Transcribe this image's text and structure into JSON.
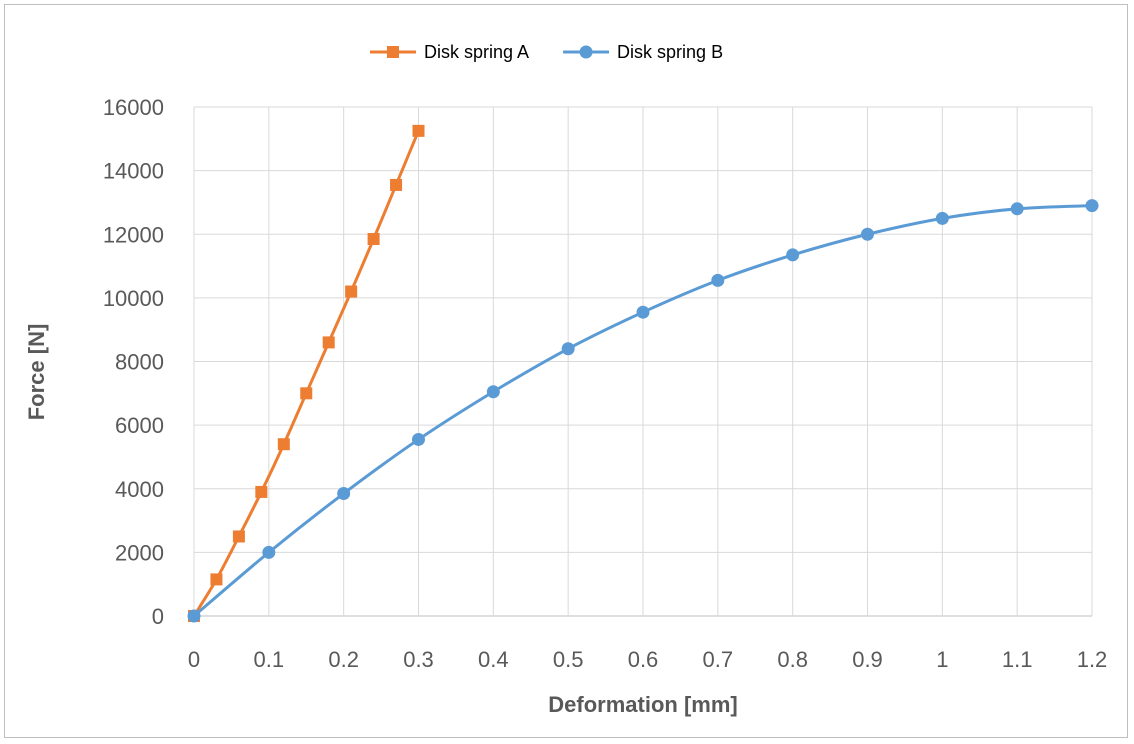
{
  "chart_data": {
    "type": "line",
    "title": "",
    "xlabel": "Deformation [mm]",
    "ylabel": "Force [N]",
    "xlim": [
      0,
      1.2
    ],
    "ylim": [
      0,
      16000
    ],
    "x_ticks": [
      "0",
      "0.1",
      "0.2",
      "0.3",
      "0.4",
      "0.5",
      "0.6",
      "0.7",
      "0.8",
      "0.9",
      "1",
      "1.1",
      "1.2"
    ],
    "y_ticks": [
      "0",
      "2000",
      "4000",
      "6000",
      "8000",
      "10000",
      "12000",
      "14000",
      "16000"
    ],
    "grid": true,
    "legend_position": "top",
    "series": [
      {
        "name": "Disk spring A",
        "color": "#ed7d31",
        "marker": "square",
        "x": [
          0,
          0.03,
          0.06,
          0.09,
          0.12,
          0.15,
          0.18,
          0.21,
          0.24,
          0.27,
          0.3
        ],
        "y": [
          0,
          1150,
          2500,
          3900,
          5400,
          7000,
          8600,
          10200,
          11850,
          13550,
          15250
        ]
      },
      {
        "name": "Disk spring B",
        "color": "#5b9bd5",
        "marker": "circle",
        "x": [
          0,
          0.1,
          0.2,
          0.3,
          0.4,
          0.5,
          0.6,
          0.7,
          0.8,
          0.9,
          1.0,
          1.1,
          1.2
        ],
        "y": [
          0,
          2000,
          3850,
          5550,
          7050,
          8400,
          9550,
          10550,
          11350,
          12000,
          12500,
          12800,
          12900
        ]
      }
    ]
  }
}
